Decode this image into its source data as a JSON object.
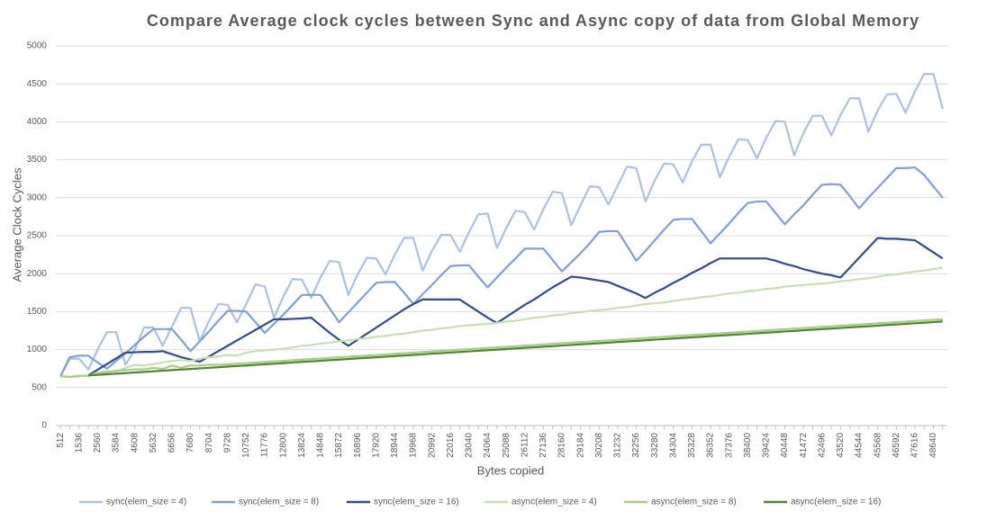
{
  "chart_data": {
    "type": "line",
    "title": "Compare Average clock cycles between Sync and Async copy of data from Global Memory",
    "x_label": "Bytes copied",
    "y_label": "Average Clock Cycles",
    "ylim": [
      0,
      5000
    ],
    "yticks": [
      0,
      500,
      1000,
      1500,
      2000,
      2500,
      3000,
      3500,
      4000,
      4500,
      5000
    ],
    "grid": true,
    "legend": "bottom",
    "categories": [
      "512",
      null,
      "1536",
      null,
      "2560",
      null,
      "3584",
      null,
      "4608",
      null,
      "5632",
      null,
      "6656",
      null,
      "7680",
      null,
      "8704",
      null,
      "9728",
      null,
      "10752",
      null,
      "11776",
      null,
      "12800",
      null,
      "13824",
      null,
      "14848",
      null,
      "15872",
      null,
      "16896",
      null,
      "17920",
      null,
      "18944",
      null,
      "19968",
      null,
      "20992",
      null,
      "22016",
      null,
      "23040",
      null,
      "24064",
      null,
      "25088",
      null,
      "26112",
      null,
      "27136",
      null,
      "28160",
      null,
      "29184",
      null,
      "30208",
      null,
      "31232",
      null,
      "32256",
      null,
      "33280",
      null,
      "34304",
      null,
      "35328",
      null,
      "36352",
      null,
      "37376",
      null,
      "38400",
      null,
      "39424",
      null,
      "40448",
      null,
      "41472",
      null,
      "42496",
      null,
      "43520",
      null,
      "44544",
      null,
      "45568",
      null,
      "46592",
      null,
      "47616",
      null,
      "48640",
      null
    ],
    "series": [
      {
        "name": "sync(elem_size = 4)",
        "color": "#aac1e6",
        "values": [
          650,
          880,
          880,
          740,
          1000,
          1230,
          1230,
          800,
          1000,
          1290,
          1290,
          1050,
          1300,
          1550,
          1550,
          1110,
          1380,
          1600,
          1590,
          1360,
          1600,
          1860,
          1830,
          1420,
          1700,
          1930,
          1920,
          1680,
          1950,
          2170,
          2150,
          1720,
          1990,
          2210,
          2200,
          1990,
          2250,
          2470,
          2470,
          2040,
          2300,
          2510,
          2510,
          2290,
          2550,
          2780,
          2790,
          2340,
          2600,
          2830,
          2810,
          2580,
          2850,
          3080,
          3060,
          2640,
          2900,
          3150,
          3140,
          2910,
          3160,
          3410,
          3390,
          2950,
          3230,
          3450,
          3440,
          3200,
          3480,
          3700,
          3700,
          3270,
          3540,
          3770,
          3760,
          3520,
          3790,
          4010,
          4000,
          3560,
          3850,
          4080,
          4080,
          3820,
          4090,
          4310,
          4310,
          3870,
          4150,
          4360,
          4370,
          4120,
          4400,
          4630,
          4630,
          4170
        ]
      },
      {
        "name": "sync(elem_size = 8)",
        "color": "#7f9fd6",
        "values": [
          650,
          900,
          920,
          920,
          830,
          750,
          850,
          950,
          1060,
          1170,
          1270,
          1270,
          1270,
          1130,
          980,
          1110,
          1240,
          1380,
          1510,
          1510,
          1500,
          1360,
          1220,
          1340,
          1460,
          1590,
          1720,
          1720,
          1720,
          1540,
          1360,
          1490,
          1620,
          1750,
          1880,
          1890,
          1890,
          1750,
          1600,
          1730,
          1850,
          1980,
          2100,
          2110,
          2110,
          1960,
          1820,
          1950,
          2080,
          2200,
          2330,
          2330,
          2330,
          2180,
          2030,
          2150,
          2270,
          2400,
          2550,
          2560,
          2560,
          2370,
          2170,
          2300,
          2440,
          2580,
          2710,
          2720,
          2720,
          2560,
          2400,
          2530,
          2660,
          2800,
          2930,
          2950,
          2950,
          2800,
          2650,
          2780,
          2900,
          3040,
          3170,
          3180,
          3170,
          3020,
          2860,
          3000,
          3130,
          3260,
          3390,
          3390,
          3400,
          3300,
          3150,
          3000
        ]
      },
      {
        "name": "sync(elem_size = 16)",
        "color": "#2f4d8a",
        "values": [
          null,
          null,
          null,
          660,
          735,
          810,
          885,
          960,
          965,
          970,
          970,
          980,
          940,
          900,
          870,
          840,
          910,
          980,
          1050,
          1120,
          1190,
          1260,
          1330,
          1400,
          1400,
          1405,
          1410,
          1420,
          1320,
          1220,
          1130,
          1050,
          1130,
          1210,
          1290,
          1370,
          1450,
          1530,
          1600,
          1660,
          1660,
          1660,
          1660,
          1660,
          1580,
          1500,
          1420,
          1350,
          1430,
          1510,
          1590,
          1660,
          1740,
          1820,
          1890,
          1960,
          1950,
          1930,
          1910,
          1890,
          1840,
          1790,
          1740,
          1680,
          1750,
          1810,
          1880,
          1940,
          2010,
          2070,
          2140,
          2200,
          2200,
          2200,
          2200,
          2200,
          2200,
          2170,
          2130,
          2100,
          2060,
          2030,
          2000,
          1980,
          1950,
          2080,
          2210,
          2340,
          2470,
          2460,
          2460,
          2450,
          2440,
          2360,
          2280,
          2200
        ]
      },
      {
        "name": "async(elem_size = 4)",
        "color": "#c6e0b4",
        "values": [
          650,
          640,
          660,
          650,
          700,
          720,
          710,
          760,
          800,
          790,
          810,
          830,
          850,
          860,
          850,
          880,
          900,
          910,
          930,
          920,
          960,
          980,
          990,
          1000,
          1010,
          1030,
          1050,
          1060,
          1080,
          1090,
          1110,
          1120,
          1140,
          1150,
          1170,
          1180,
          1200,
          1210,
          1230,
          1250,
          1260,
          1280,
          1290,
          1310,
          1320,
          1330,
          1340,
          1350,
          1370,
          1380,
          1400,
          1420,
          1430,
          1450,
          1460,
          1480,
          1490,
          1510,
          1520,
          1530,
          1550,
          1560,
          1580,
          1600,
          1610,
          1620,
          1640,
          1660,
          1670,
          1690,
          1700,
          1720,
          1740,
          1750,
          1770,
          1780,
          1800,
          1810,
          1830,
          1840,
          1850,
          1860,
          1870,
          1880,
          1900,
          1910,
          1930,
          1940,
          1960,
          1980,
          1990,
          2010,
          2030,
          2040,
          2060,
          2080
        ]
      },
      {
        "name": "async(elem_size = 8)",
        "color": "#a3cf85",
        "values": [
          650,
          640,
          650,
          660,
          680,
          700,
          720,
          730,
          740,
          740,
          760,
          745,
          790,
          760,
          790,
          790,
          800,
          800,
          805,
          815,
          821,
          829,
          837,
          844,
          852,
          860,
          868,
          875,
          883,
          891,
          898,
          906,
          914,
          922,
          929,
          937,
          945,
          952,
          960,
          968,
          976,
          983,
          991,
          999,
          1007,
          1014,
          1022,
          1030,
          1037,
          1045,
          1053,
          1060,
          1068,
          1076,
          1084,
          1091,
          1099,
          1107,
          1114,
          1122,
          1130,
          1138,
          1145,
          1153,
          1161,
          1168,
          1176,
          1184,
          1192,
          1199,
          1207,
          1215,
          1222,
          1230,
          1238,
          1246,
          1253,
          1261,
          1269,
          1276,
          1284,
          1292,
          1300,
          1307,
          1315,
          1323,
          1330,
          1338,
          1346,
          1354,
          1361,
          1369,
          1377,
          1384,
          1392,
          1400
        ]
      },
      {
        "name": "async(elem_size = 16)",
        "color": "#548235",
        "values": [
          null,
          null,
          null,
          660,
          668,
          675,
          683,
          690,
          699,
          706,
          714,
          722,
          730,
          737,
          745,
          753,
          760,
          768,
          776,
          784,
          791,
          799,
          807,
          814,
          822,
          830,
          838,
          845,
          853,
          861,
          868,
          876,
          884,
          892,
          899,
          907,
          915,
          922,
          930,
          938,
          946,
          953,
          961,
          969,
          977,
          984,
          992,
          1000,
          1007,
          1015,
          1023,
          1030,
          1038,
          1046,
          1054,
          1061,
          1069,
          1077,
          1084,
          1092,
          1100,
          1108,
          1115,
          1123,
          1131,
          1138,
          1146,
          1154,
          1162,
          1169,
          1177,
          1185,
          1192,
          1200,
          1208,
          1216,
          1223,
          1231,
          1239,
          1246,
          1254,
          1262,
          1270,
          1277,
          1285,
          1293,
          1300,
          1308,
          1316,
          1324,
          1331,
          1339,
          1347,
          1354,
          1362,
          1370
        ]
      }
    ]
  }
}
